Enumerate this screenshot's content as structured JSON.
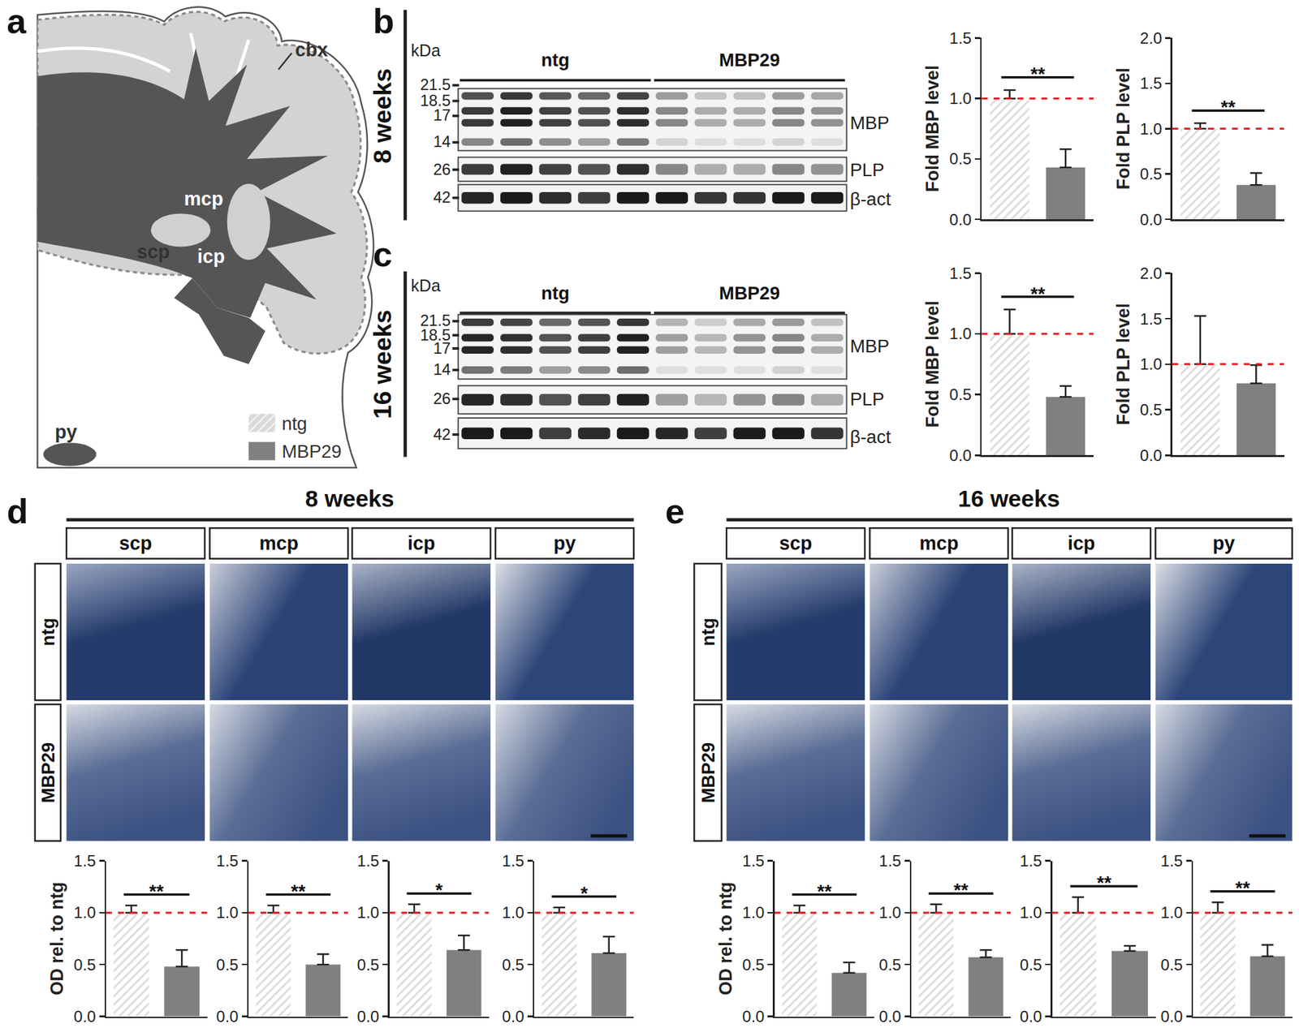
{
  "figure": {
    "panel_labels": [
      "a",
      "b",
      "c",
      "d",
      "e"
    ],
    "schematic": {
      "labels": [
        "cbx",
        "mcp",
        "scp",
        "icp",
        "py"
      ]
    },
    "legend_items": [
      {
        "name": "ntg",
        "color": "#d9d9d9",
        "marker": "hatched"
      },
      {
        "name": "MBP29",
        "color": "#808080",
        "marker": "solid"
      }
    ],
    "blots": [
      {
        "age": "8 weeks",
        "unit": "kDa",
        "groups": [
          "ntg",
          "MBP29"
        ],
        "lanes_per_group": 5,
        "mbp_markers": [
          21.5,
          18.5,
          17,
          14
        ],
        "plp_markers": [
          26
        ],
        "actin_markers": [
          42
        ],
        "proteins": [
          "MBP",
          "PLP",
          "β-act"
        ]
      },
      {
        "age": "16 weeks",
        "unit": "kDa",
        "groups": [
          "ntg",
          "MBP29"
        ],
        "lanes_per_group": 5,
        "mbp_markers": [
          21.5,
          18.5,
          17,
          14
        ],
        "plp_markers": [
          26
        ],
        "actin_markers": [
          42
        ],
        "proteins": [
          "MBP",
          "PLP",
          "β-act"
        ]
      }
    ],
    "histology": [
      {
        "age": "8 weeks",
        "regions": [
          "scp",
          "mcp",
          "icp",
          "py"
        ],
        "rows": [
          "ntg",
          "MBP29"
        ]
      },
      {
        "age": "16 weeks",
        "regions": [
          "scp",
          "mcp",
          "icp",
          "py"
        ],
        "rows": [
          "ntg",
          "MBP29"
        ]
      }
    ]
  },
  "chart_data": [
    {
      "type": "bar",
      "ylabel": "Fold MBP level",
      "categories": [
        "ntg",
        "MBP29"
      ],
      "values": [
        1.0,
        0.43
      ],
      "errors": [
        0.07,
        0.15
      ],
      "colors": [
        "#d9d9d9",
        "#808080"
      ],
      "ylim": [
        0,
        1.5
      ],
      "yticks": [
        {
          "value": 0,
          "label": "0.0"
        },
        0.5,
        {
          "value": 1,
          "label": "1.0"
        },
        1.5
      ],
      "reference_line": 1,
      "significance": "**",
      "tick_labels": "y",
      "grid": false
    },
    {
      "type": "bar",
      "ylabel": "Fold PLP level",
      "categories": [
        "ntg",
        "MBP29"
      ],
      "values": [
        1.0,
        0.38
      ],
      "errors": [
        0.06,
        0.13
      ],
      "colors": [
        "#d9d9d9",
        "#808080"
      ],
      "ylim": [
        0,
        2.0
      ],
      "yticks": [
        {
          "value": 0,
          "label": "0.0"
        },
        0.5,
        {
          "value": 1,
          "label": "1.0"
        },
        1.5,
        {
          "value": 2,
          "label": "2.0"
        }
      ],
      "reference_line": 1,
      "significance": "**",
      "tick_labels": "y",
      "grid": false
    },
    {
      "type": "bar",
      "ylabel": "Fold MBP level",
      "categories": [
        "ntg",
        "MBP29"
      ],
      "values": [
        1.0,
        0.48
      ],
      "errors": [
        0.2,
        0.09
      ],
      "colors": [
        "#d9d9d9",
        "#808080"
      ],
      "ylim": [
        0,
        1.5
      ],
      "yticks": [
        {
          "value": 0,
          "label": "0.0"
        },
        0.5,
        {
          "value": 1,
          "label": "1.0"
        },
        1.5
      ],
      "reference_line": 1,
      "significance": "**",
      "tick_labels": "y",
      "grid": false
    },
    {
      "type": "bar",
      "ylabel": "Fold PLP level",
      "categories": [
        "ntg",
        "MBP29"
      ],
      "values": [
        1.0,
        0.79
      ],
      "errors": [
        0.53,
        0.2
      ],
      "colors": [
        "#d9d9d9",
        "#808080"
      ],
      "ylim": [
        0,
        2.0
      ],
      "yticks": [
        {
          "value": 0,
          "label": "0.0"
        },
        0.5,
        {
          "value": 1,
          "label": "1.0"
        },
        1.5,
        {
          "value": 2,
          "label": "2.0"
        }
      ],
      "reference_line": 1,
      "tick_labels": "y",
      "grid": false
    },
    {
      "type": "bar",
      "ylabel": "OD rel. to ntg",
      "categories": [
        "ntg",
        "MBP29"
      ],
      "values": [
        1.0,
        0.48
      ],
      "errors": [
        0.07,
        0.16
      ],
      "colors": [
        "#d9d9d9",
        "#808080"
      ],
      "ylim": [
        0,
        1.5
      ],
      "yticks": [
        {
          "value": 0,
          "label": "0.0"
        },
        0.5,
        {
          "value": 1,
          "label": "1.0"
        },
        1.5
      ],
      "reference_line": 1,
      "significance": "**",
      "tick_labels": "y",
      "grid": false
    },
    {
      "type": "bar",
      "categories": [
        "ntg",
        "MBP29"
      ],
      "values": [
        1.0,
        0.5
      ],
      "errors": [
        0.07,
        0.1
      ],
      "colors": [
        "#d9d9d9",
        "#808080"
      ],
      "ylim": [
        0,
        1.5
      ],
      "yticks": [
        {
          "value": 0,
          "label": "0.0"
        },
        0.5,
        {
          "value": 1,
          "label": "1.0"
        },
        1.5
      ],
      "reference_line": 1,
      "significance": "**",
      "tick_labels": "y",
      "grid": false
    },
    {
      "type": "bar",
      "categories": [
        "ntg",
        "MBP29"
      ],
      "values": [
        1.0,
        0.64
      ],
      "errors": [
        0.08,
        0.14
      ],
      "colors": [
        "#d9d9d9",
        "#808080"
      ],
      "ylim": [
        0,
        1.5
      ],
      "yticks": [
        {
          "value": 0,
          "label": "0.0"
        },
        0.5,
        {
          "value": 1,
          "label": "1.0"
        },
        1.5
      ],
      "reference_line": 1,
      "significance": "*",
      "tick_labels": "y",
      "grid": false
    },
    {
      "type": "bar",
      "categories": [
        "ntg",
        "MBP29"
      ],
      "values": [
        1.0,
        0.61
      ],
      "errors": [
        0.05,
        0.16
      ],
      "colors": [
        "#d9d9d9",
        "#808080"
      ],
      "ylim": [
        0,
        1.5
      ],
      "yticks": [
        {
          "value": 0,
          "label": "0.0"
        },
        0.5,
        {
          "value": 1,
          "label": "1.0"
        },
        1.5
      ],
      "reference_line": 1,
      "significance": "*",
      "tick_labels": "y",
      "grid": false
    },
    {
      "type": "bar",
      "ylabel": "OD rel. to ntg",
      "categories": [
        "ntg",
        "MBP29"
      ],
      "values": [
        1.0,
        0.42
      ],
      "errors": [
        0.07,
        0.1
      ],
      "colors": [
        "#d9d9d9",
        "#808080"
      ],
      "ylim": [
        0,
        1.5
      ],
      "yticks": [
        {
          "value": 0,
          "label": "0.0"
        },
        0.5,
        {
          "value": 1,
          "label": "1.0"
        },
        1.5
      ],
      "reference_line": 1,
      "significance": "**",
      "tick_labels": "y",
      "grid": false
    },
    {
      "type": "bar",
      "categories": [
        "ntg",
        "MBP29"
      ],
      "values": [
        1.0,
        0.57
      ],
      "errors": [
        0.08,
        0.07
      ],
      "colors": [
        "#d9d9d9",
        "#808080"
      ],
      "ylim": [
        0,
        1.5
      ],
      "yticks": [
        {
          "value": 0,
          "label": "0.0"
        },
        0.5,
        {
          "value": 1,
          "label": "1.0"
        },
        1.5
      ],
      "reference_line": 1,
      "significance": "**",
      "tick_labels": "y",
      "grid": false
    },
    {
      "type": "bar",
      "categories": [
        "ntg",
        "MBP29"
      ],
      "values": [
        1.0,
        0.63
      ],
      "errors": [
        0.15,
        0.05
      ],
      "colors": [
        "#d9d9d9",
        "#808080"
      ],
      "ylim": [
        0,
        1.5
      ],
      "yticks": [
        {
          "value": 0,
          "label": "0.0"
        },
        0.5,
        {
          "value": 1,
          "label": "1.0"
        },
        1.5
      ],
      "reference_line": 1,
      "significance": "**",
      "tick_labels": "y",
      "grid": false
    },
    {
      "type": "bar",
      "categories": [
        "ntg",
        "MBP29"
      ],
      "values": [
        1.0,
        0.58
      ],
      "errors": [
        0.1,
        0.11
      ],
      "colors": [
        "#d9d9d9",
        "#808080"
      ],
      "ylim": [
        0,
        1.5
      ],
      "yticks": [
        {
          "value": 0,
          "label": "0.0"
        },
        0.5,
        {
          "value": 1,
          "label": "1.0"
        },
        1.5
      ],
      "reference_line": 1,
      "significance": "**",
      "tick_labels": "y",
      "grid": false
    }
  ]
}
